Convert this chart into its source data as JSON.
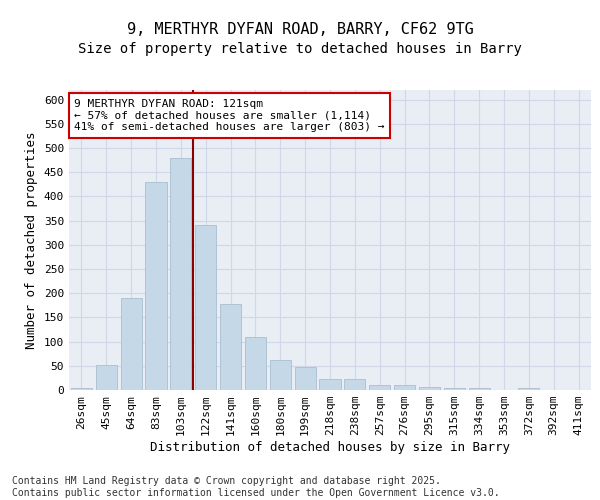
{
  "title_line1": "9, MERTHYR DYFAN ROAD, BARRY, CF62 9TG",
  "title_line2": "Size of property relative to detached houses in Barry",
  "xlabel": "Distribution of detached houses by size in Barry",
  "ylabel": "Number of detached properties",
  "categories": [
    "26sqm",
    "45sqm",
    "64sqm",
    "83sqm",
    "103sqm",
    "122sqm",
    "141sqm",
    "160sqm",
    "180sqm",
    "199sqm",
    "218sqm",
    "238sqm",
    "257sqm",
    "276sqm",
    "295sqm",
    "315sqm",
    "334sqm",
    "353sqm",
    "372sqm",
    "392sqm",
    "411sqm"
  ],
  "values": [
    5,
    52,
    190,
    430,
    480,
    340,
    178,
    110,
    62,
    47,
    22,
    22,
    10,
    10,
    7,
    4,
    4,
    1,
    4,
    1,
    1
  ],
  "bar_color": "#c5d8e8",
  "bar_edge_color": "#a0b8cc",
  "grid_color": "#d0d8e8",
  "background_color": "#e8eef4",
  "vline_x_index": 5,
  "vline_color": "#8b0000",
  "annotation_text": "9 MERTHYR DYFAN ROAD: 121sqm\n← 57% of detached houses are smaller (1,114)\n41% of semi-detached houses are larger (803) →",
  "annotation_box_color": "#ffffff",
  "annotation_box_edge": "#cc0000",
  "ylim": [
    0,
    620
  ],
  "yticks": [
    0,
    50,
    100,
    150,
    200,
    250,
    300,
    350,
    400,
    450,
    500,
    550,
    600
  ],
  "footer_text": "Contains HM Land Registry data © Crown copyright and database right 2025.\nContains public sector information licensed under the Open Government Licence v3.0.",
  "title_fontsize": 11,
  "subtitle_fontsize": 10,
  "axis_label_fontsize": 9,
  "tick_fontsize": 8,
  "annotation_fontsize": 8
}
